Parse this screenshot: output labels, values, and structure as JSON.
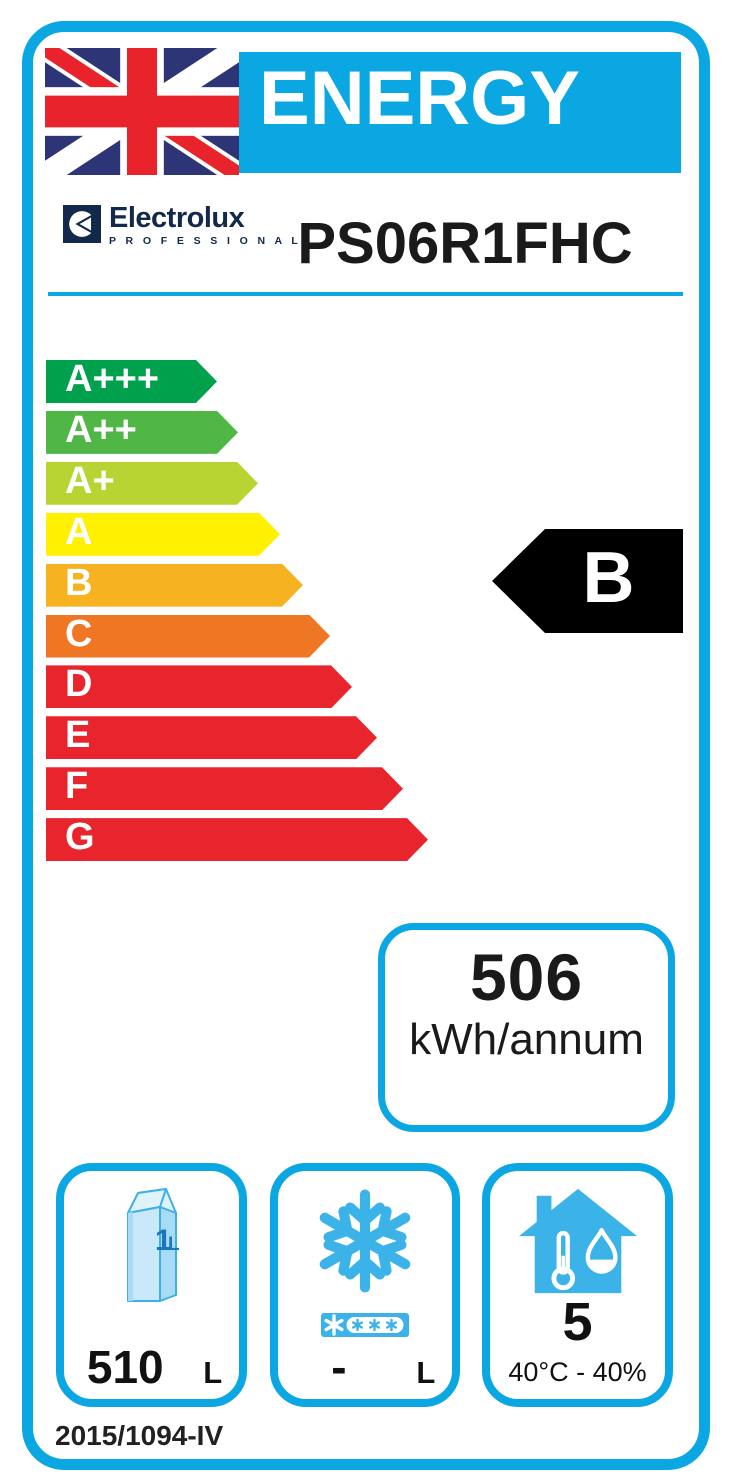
{
  "header": {
    "banner": "ENERGY",
    "model": "PS06R1FHC"
  },
  "brand": {
    "name": "Electrolux",
    "sub": "P R O F E S S I O N A L"
  },
  "colors": {
    "cyan": "#0AA7E2",
    "icon_cyan": "#3BB3E8",
    "flag_navy": "#2D3577",
    "flag_red": "#E8232B",
    "brand_navy": "#12294B",
    "rating_black": "#000000"
  },
  "chart_data": {
    "type": "bar",
    "title": "Energy efficiency rating scale",
    "categories": [
      "A+++",
      "A++",
      "A+",
      "A",
      "B",
      "C",
      "D",
      "E",
      "F",
      "G"
    ],
    "values": [
      171,
      192,
      212,
      234,
      257,
      284,
      306,
      331,
      357,
      382
    ],
    "colors": [
      "#00A14D",
      "#50B747",
      "#B7D433",
      "#FFF101",
      "#F6B221",
      "#EF7622",
      "#E8252C",
      "#E8252C",
      "#E8252C",
      "#E8252C"
    ],
    "legend_position": "none",
    "grid": false
  },
  "rating_scale": [
    {
      "grade": "A+++",
      "color": "#00A14D",
      "length": 171
    },
    {
      "grade": "A++",
      "color": "#50B747",
      "length": 192
    },
    {
      "grade": "A+",
      "color": "#B7D433",
      "length": 212
    },
    {
      "grade": "A",
      "color": "#FFF101",
      "length": 234
    },
    {
      "grade": "B",
      "color": "#F6B221",
      "length": 257
    },
    {
      "grade": "C",
      "color": "#EF7622",
      "length": 284
    },
    {
      "grade": "D",
      "color": "#E8252C",
      "length": 306
    },
    {
      "grade": "E",
      "color": "#E8252C",
      "length": 331
    },
    {
      "grade": "F",
      "color": "#E8252C",
      "length": 357
    },
    {
      "grade": "G",
      "color": "#E8252C",
      "length": 382
    }
  ],
  "rating": {
    "grade": "B",
    "row_index": 4,
    "color": "#000000"
  },
  "energy": {
    "value": "506",
    "unit": "kWh/annum"
  },
  "boxes": [
    {
      "name": "fridge-volume",
      "icon": "milk-carton-icon",
      "carton": {
        "value": "1",
        "unit": "L"
      },
      "value": "510",
      "unit": "L"
    },
    {
      "name": "freezer-volume",
      "icon": "snowflake-icon",
      "badge_icon": "freezer-star-rating-icon",
      "value": "-",
      "unit": "L"
    },
    {
      "name": "climate-class",
      "icon": "house-climate-icon",
      "value": "5",
      "condition": "40°C - 40%"
    }
  ],
  "footer": {
    "regulation": "2015/1094-IV"
  }
}
